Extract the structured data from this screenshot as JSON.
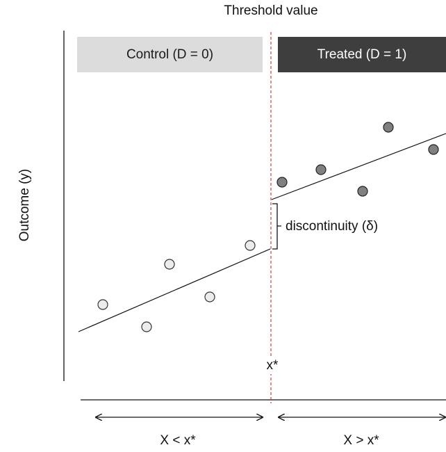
{
  "threshold_title": "Threshold value",
  "y_axis_label": "Outcome (y)",
  "control_box_label": "Control (D = 0)",
  "treated_box_label": "Treated (D = 1)",
  "discontinuity_label": "discontinuity (δ)",
  "cutoff_label": "x*",
  "left_range_label": "X < x*",
  "right_range_label": "X > x*",
  "colors": {
    "control_box": "#dcdcdc",
    "treated_box": "#3e3e3e",
    "control_points": "#ececec",
    "treated_points": "#808080",
    "cutoff_line": "#e8333a"
  }
}
